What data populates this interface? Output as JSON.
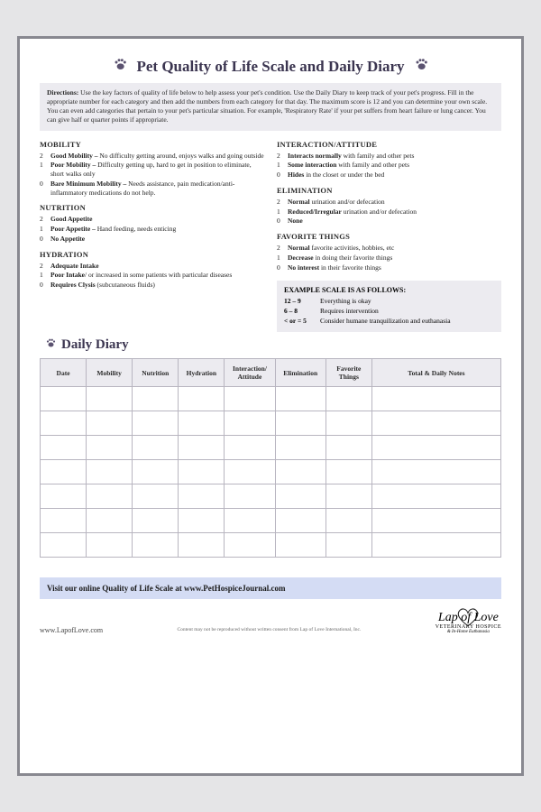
{
  "title": "Pet Quality of Life Scale and Daily Diary",
  "paw_color": "#5b5270",
  "directions_label": "Directions:",
  "directions_text": "Use the key factors of quality of life below to help assess your pet's condition. Use the Daily Diary to keep track of your pet's progress. Fill in the appropriate number for each category and then add the numbers from each category for that day. The maximum score is 12 and you can determine your own scale. You can even add categories that pertain to your pet's particular situation.  For example, 'Respiratory Rate' if your pet suffers from heart failure or lung cancer. You can give half or quarter points if appropriate.",
  "left_categories": [
    {
      "title": "MOBILITY",
      "items": [
        {
          "n": "2",
          "bold": "Good Mobility –",
          "rest": " No difficulty getting around, enjoys walks and going outside"
        },
        {
          "n": "1",
          "bold": "Poor Mobility –",
          "rest": " Difficulty getting up, hard to get in position to eliminate, short walks only"
        },
        {
          "n": "0",
          "bold": "Bare Minimum Mobility –",
          "rest": " Needs assistance, pain medication/anti-inflammatory medications do not help."
        }
      ]
    },
    {
      "title": "NUTRITION",
      "items": [
        {
          "n": "2",
          "bold": "Good Appetite",
          "rest": ""
        },
        {
          "n": "1",
          "bold": "Poor Appetite –",
          "rest": " Hand feeding, needs enticing"
        },
        {
          "n": "0",
          "bold": "No Appetite",
          "rest": ""
        }
      ]
    },
    {
      "title": "HYDRATION",
      "items": [
        {
          "n": "2",
          "bold": "Adequate Intake",
          "rest": ""
        },
        {
          "n": "1",
          "bold": "Poor Intake",
          "rest": "/ or increased in some patients with particular diseases"
        },
        {
          "n": "0",
          "bold": "Requires Clysis",
          "rest": " (subcutaneous fluids)"
        }
      ]
    }
  ],
  "right_categories": [
    {
      "title": "INTERACTION/ATTITUDE",
      "items": [
        {
          "n": "2",
          "bold": "Interacts normally",
          "rest": " with family and other pets"
        },
        {
          "n": "1",
          "bold": "Some interaction",
          "rest": " with family and other pets"
        },
        {
          "n": "0",
          "bold": "Hides",
          "rest": " in the closet or under the bed"
        }
      ]
    },
    {
      "title": "ELIMINATION",
      "items": [
        {
          "n": "2",
          "bold": "Normal",
          "rest": " urination and/or defecation"
        },
        {
          "n": "1",
          "bold": "Reduced/Irregular",
          "rest": " urination and/or defecation"
        },
        {
          "n": "0",
          "bold": "None",
          "rest": ""
        }
      ]
    },
    {
      "title": "FAVORITE THINGS",
      "items": [
        {
          "n": "2",
          "bold": "Normal",
          "rest": " favorite activities, hobbies, etc"
        },
        {
          "n": "1",
          "bold": "Decrease",
          "rest": " in doing their favorite things"
        },
        {
          "n": "0",
          "bold": "No interest",
          "rest": " in their favorite things"
        }
      ]
    }
  ],
  "example": {
    "title": "EXAMPLE SCALE IS AS FOLLOWS:",
    "rows": [
      {
        "range": "12 – 9",
        "text": "Everything is okay"
      },
      {
        "range": "6 – 8",
        "text": "Requires intervention"
      },
      {
        "range": "< or = 5",
        "text": "Consider humane tranquilization and euthanasia"
      }
    ]
  },
  "diary_heading": "Daily Diary",
  "diary_columns": [
    "Date",
    "Mobility",
    "Nutrition",
    "Hydration",
    "Interaction/ Attitude",
    "Elimination",
    "Favorite Things",
    "Total & Daily Notes"
  ],
  "diary_col_widths": [
    "10%",
    "10%",
    "10%",
    "10%",
    "11%",
    "11%",
    "10%",
    "28%"
  ],
  "diary_rows": 7,
  "visit_text": "Visit our online Quality of Life Scale at www.PetHospiceJournal.com",
  "footer_url": "www.LapofLove.com",
  "footer_disclaimer": "Content may not be reproduced without written consent from Lap of Love International, Inc.",
  "logo": {
    "line1": "Lap of Love",
    "line2": "VETERINARY HOSPICE",
    "line3": "& In-Home Euthanasia"
  },
  "colors": {
    "page_bg": "#ffffff",
    "outer_bg": "#e5e5e7",
    "border": "#888890",
    "box_bg": "#ecebf0",
    "visit_bg": "#d4dcf4",
    "table_border": "#b8b5c0",
    "title": "#3b3550"
  }
}
